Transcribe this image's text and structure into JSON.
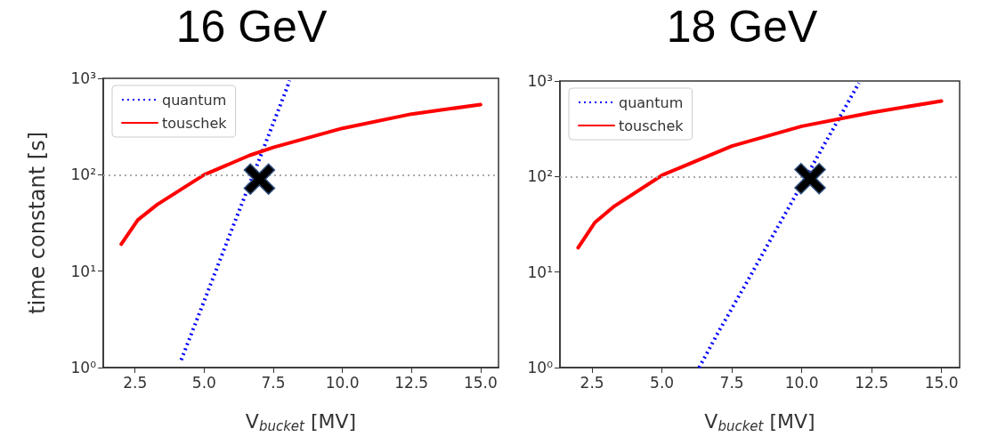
{
  "chart_data": [
    {
      "type": "line",
      "title": "16 GeV",
      "xlabel": "V$_{bucket}$ [MV]",
      "ylabel": "time constant [s]",
      "log": "y",
      "xlim": [
        1.35,
        15.65
      ],
      "xticks": [
        2.5,
        {
          "value": 5,
          "label": "5.0"
        },
        7.5,
        {
          "value": 10,
          "label": "10.0"
        },
        12.5,
        {
          "value": 15,
          "label": "15.0"
        }
      ],
      "ylim": [
        1,
        1000
      ],
      "yticks": [
        {
          "value": 1,
          "label": "10⁰"
        },
        {
          "value": 10,
          "label": "10¹"
        },
        {
          "value": 100,
          "label": "10²"
        },
        {
          "value": 1000,
          "label": "10³"
        }
      ],
      "legend": "top left",
      "grid": false,
      "ref_lines": [
        {
          "axis": "y",
          "value": 100,
          "color": "#aaaaaa",
          "line_style": "dotted"
        }
      ],
      "series": [
        {
          "name": "quantum",
          "color": "#0000ff",
          "line_style": "dotted",
          "marker": "none",
          "x": [
            4.17,
            5,
            6,
            7,
            8,
            8.09
          ],
          "values": [
            1.2,
            4.9,
            27,
            146,
            800,
            950
          ]
        },
        {
          "name": "touschek",
          "color": "#ff0000",
          "line_style": "solid",
          "marker": "none",
          "x": [
            2,
            2.6,
            3.3,
            5,
            6.65,
            7.5,
            10,
            12.5,
            15
          ],
          "values": [
            19,
            34,
            49,
            100,
            159,
            192,
            303,
            426,
            534
          ]
        },
        {
          "type": "scatter",
          "color": "#000000",
          "marker": "cross",
          "x": [
            7
          ],
          "values": [
            90
          ]
        }
      ]
    },
    {
      "type": "line",
      "title": "18 GeV",
      "xlabel": "V$_{bucket}$ [MV]",
      "log": "y",
      "xlim": [
        1.35,
        15.65
      ],
      "xticks": [
        2.5,
        {
          "value": 5,
          "label": "5.0"
        },
        7.5,
        {
          "value": 10,
          "label": "10.0"
        },
        12.5,
        {
          "value": 15,
          "label": "15.0"
        }
      ],
      "ylim": [
        1,
        1000
      ],
      "yticks": [
        {
          "value": 1,
          "label": "10⁰"
        },
        {
          "value": 10,
          "label": "10¹"
        },
        {
          "value": 100,
          "label": "10²"
        },
        {
          "value": 1000,
          "label": "10³"
        }
      ],
      "legend": "top left",
      "grid": false,
      "ref_lines": [
        {
          "axis": "y",
          "value": 100,
          "color": "#aaaaaa",
          "line_style": "dotted"
        }
      ],
      "series": [
        {
          "name": "quantum",
          "color": "#0000ff",
          "line_style": "dotted",
          "marker": "none",
          "x": [
            6.33,
            7,
            8,
            9,
            11,
            12,
            12.05
          ],
          "values": [
            1.0,
            2.3,
            7.5,
            25,
            272,
            900,
            955
          ]
        },
        {
          "name": "touschek",
          "color": "#ff0000",
          "line_style": "solid",
          "marker": "none",
          "x": [
            2,
            2.6,
            3.3,
            5,
            7.5,
            10,
            12.5,
            15
          ],
          "values": [
            18,
            33,
            49,
            103,
            208,
            336,
            467,
            618
          ]
        },
        {
          "type": "scatter",
          "color": "#000000",
          "marker": "cross",
          "x": [
            10.3
          ],
          "values": [
            95
          ]
        }
      ]
    }
  ]
}
